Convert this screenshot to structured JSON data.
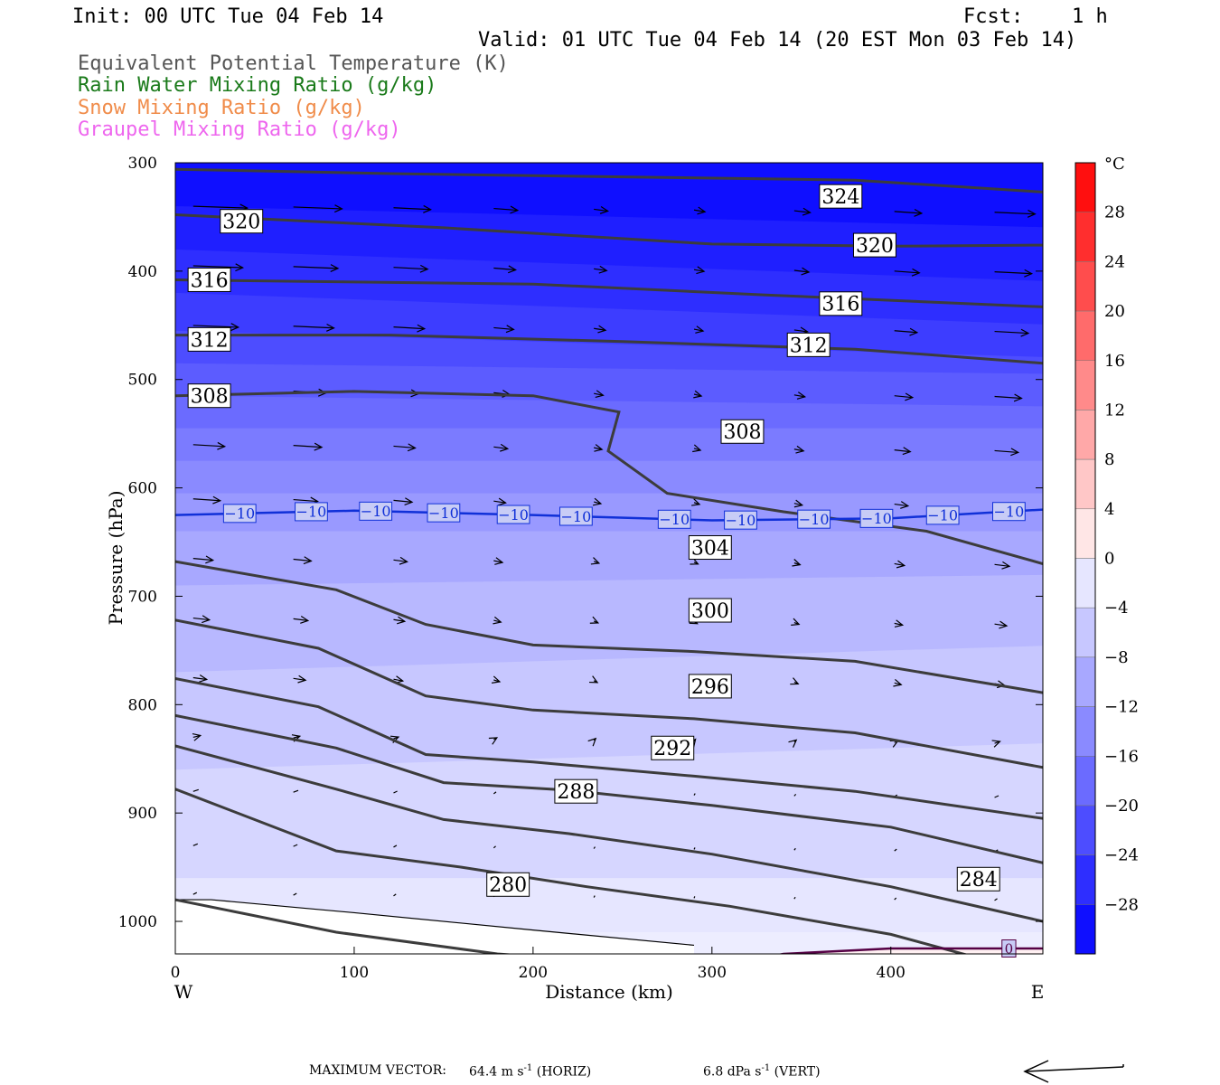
{
  "header": {
    "init": "Init: 00 UTC Tue 04 Feb 14",
    "fcst_label": "Fcst:",
    "fcst_value": "1 h",
    "valid": "Valid: 01 UTC Tue 04 Feb 14 (20 EST Mon 03 Feb 14)"
  },
  "legend_lines": [
    {
      "text": "Equivalent Potential Temperature (K)",
      "color": "#555555"
    },
    {
      "text": "Rain Water Mixing Ratio (g/kg)",
      "color": "#1a7a1a"
    },
    {
      "text": "Snow Mixing Ratio (g/kg)",
      "color": "#f08c4a"
    },
    {
      "text": "Graupel Mixing Ratio (g/kg)",
      "color": "#ee66ee"
    }
  ],
  "footer": {
    "max_vector_label": "MAXIMUM VECTOR:",
    "horiz_value": "64.4 m s",
    "horiz_unit": "(HORIZ)",
    "vert_value": "6.8 dPa s",
    "vert_unit": "(VERT)",
    "exponent": "-1"
  },
  "chart_data": {
    "type": "cross-section",
    "xlabel": "Distance (km)",
    "ylabel": "Pressure (hPa)",
    "x_ticks": [
      0,
      100,
      200,
      300,
      400
    ],
    "y_ticks": [
      300,
      400,
      500,
      600,
      700,
      800,
      900,
      1000
    ],
    "xlim": [
      0,
      485
    ],
    "ylim": [
      300,
      1030
    ],
    "direction_left": "W",
    "direction_right": "E",
    "colorbar": {
      "unit": "°C",
      "tick_labels": [
        "28",
        "24",
        "20",
        "16",
        "12",
        "8",
        "4",
        "0",
        "−4",
        "−8",
        "−12",
        "−16",
        "−20",
        "−24",
        "−28"
      ],
      "range": [
        -32,
        32
      ],
      "step": 4
    },
    "theta_e_contours": [
      {
        "label": "324",
        "points": [
          [
            0,
            306
          ],
          [
            120,
            310
          ],
          [
            250,
            313
          ],
          [
            380,
            316
          ],
          [
            485,
            327
          ]
        ],
        "label_at": [
          372,
          331
        ]
      },
      {
        "label": "320",
        "points": [
          [
            0,
            348
          ],
          [
            150,
            360
          ],
          [
            300,
            375
          ],
          [
            400,
            377
          ],
          [
            485,
            376
          ]
        ],
        "label_at": [
          37,
          354
        ],
        "label2_at": [
          391,
          376
        ]
      },
      {
        "label": "316",
        "points": [
          [
            0,
            408
          ],
          [
            200,
            412
          ],
          [
            330,
            422
          ],
          [
            485,
            433
          ]
        ],
        "label_at": [
          19,
          408
        ],
        "label2_at": [
          372,
          430
        ]
      },
      {
        "label": "312",
        "points": [
          [
            0,
            459
          ],
          [
            120,
            459
          ],
          [
            250,
            465
          ],
          [
            380,
            472
          ],
          [
            485,
            485
          ]
        ],
        "label_at": [
          19,
          463
        ],
        "label2_at": [
          354,
          468
        ]
      },
      {
        "label": "308",
        "points": [
          [
            0,
            515
          ],
          [
            100,
            511
          ],
          [
            200,
            515
          ],
          [
            248,
            530
          ],
          [
            242,
            566
          ],
          [
            275,
            605
          ],
          [
            340,
            622
          ],
          [
            420,
            640
          ],
          [
            485,
            670
          ]
        ],
        "label_at": [
          19,
          515
        ],
        "label2_at": [
          317,
          548
        ]
      },
      {
        "label": "304",
        "points": [
          [
            0,
            668
          ],
          [
            90,
            694
          ],
          [
            140,
            726
          ],
          [
            200,
            745
          ],
          [
            290,
            751
          ],
          [
            380,
            760
          ],
          [
            485,
            789
          ]
        ],
        "label_at": [
          299,
          655
        ]
      },
      {
        "label": "300",
        "points": [
          [
            0,
            722
          ],
          [
            80,
            748
          ],
          [
            140,
            792
          ],
          [
            200,
            805
          ],
          [
            290,
            813
          ],
          [
            380,
            826
          ],
          [
            485,
            858
          ]
        ],
        "label_at": [
          299,
          713
        ]
      },
      {
        "label": "296",
        "points": [
          [
            0,
            776
          ],
          [
            80,
            802
          ],
          [
            140,
            846
          ],
          [
            200,
            853
          ],
          [
            290,
            866
          ],
          [
            380,
            880
          ],
          [
            485,
            905
          ]
        ],
        "label_at": [
          299,
          783
        ]
      },
      {
        "label": "292",
        "points": [
          [
            0,
            810
          ],
          [
            90,
            840
          ],
          [
            150,
            872
          ],
          [
            220,
            879
          ],
          [
            300,
            893
          ],
          [
            400,
            913
          ],
          [
            485,
            946
          ]
        ],
        "label_at": [
          278,
          840
        ]
      },
      {
        "label": "288",
        "points": [
          [
            0,
            838
          ],
          [
            90,
            878
          ],
          [
            150,
            906
          ],
          [
            220,
            919
          ],
          [
            300,
            938
          ],
          [
            400,
            968
          ],
          [
            485,
            1000
          ]
        ],
        "label_at": [
          224,
          880
        ]
      },
      {
        "label": "284",
        "points": [
          [
            0,
            878
          ],
          [
            90,
            935
          ],
          [
            160,
            950
          ],
          [
            230,
            968
          ],
          [
            310,
            986
          ],
          [
            400,
            1012
          ],
          [
            485,
            1050
          ]
        ],
        "label_at": [
          449,
          961
        ]
      },
      {
        "label": "280",
        "points": [
          [
            0,
            980
          ],
          [
            90,
            1010
          ],
          [
            180,
            1030
          ],
          [
            280,
            1042
          ]
        ],
        "label_at": [
          186,
          966
        ]
      }
    ],
    "temperature_contours": [
      {
        "label": "−10",
        "color": "#1030d8",
        "points": [
          [
            0,
            625
          ],
          [
            100,
            621
          ],
          [
            200,
            625
          ],
          [
            300,
            630
          ],
          [
            400,
            628
          ],
          [
            485,
            620
          ]
        ],
        "label_positions": [
          36,
          76,
          112,
          150,
          189,
          224,
          279,
          316,
          357,
          392,
          429,
          466
        ]
      },
      {
        "label": "0",
        "color": "#550044",
        "points": [
          [
            302,
            1042
          ],
          [
            340,
            1030
          ],
          [
            400,
            1025
          ],
          [
            485,
            1025
          ]
        ],
        "label_positions": [
          466
        ]
      }
    ]
  }
}
